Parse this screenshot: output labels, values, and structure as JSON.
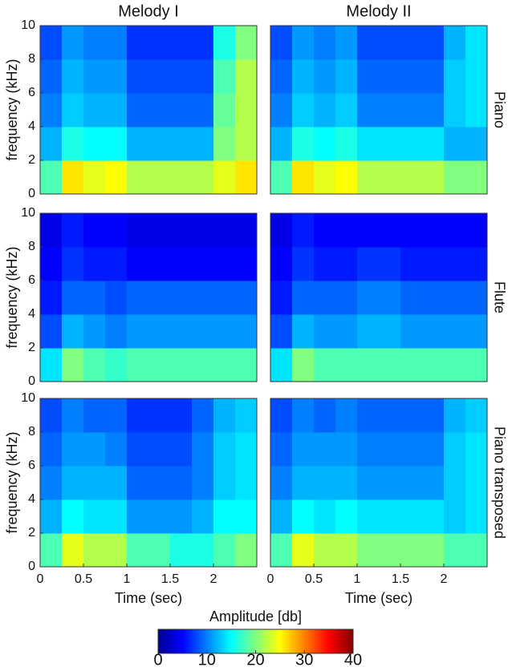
{
  "chart_data": [
    {
      "type": "heatmap",
      "title": "Melody I",
      "ylabel": "frequency (kHz)",
      "xlim": [
        0,
        2.5
      ],
      "ylim": [
        0,
        10
      ],
      "yticks": [
        0,
        2,
        4,
        6,
        8,
        10
      ],
      "z": [
        [
          18,
          26,
          24,
          25,
          22,
          22,
          22,
          22,
          24,
          26
        ],
        [
          12,
          16,
          15,
          15,
          12,
          12,
          12,
          12,
          20,
          22
        ],
        [
          10,
          13,
          12,
          12,
          9,
          9,
          9,
          9,
          19,
          22
        ],
        [
          9,
          12,
          11,
          11,
          8,
          8,
          8,
          8,
          18,
          22
        ],
        [
          8,
          11,
          10,
          10,
          7,
          7,
          7,
          7,
          16,
          20
        ]
      ]
    },
    {
      "type": "heatmap",
      "title": "Melody II",
      "xlim": [
        0,
        2.5
      ],
      "ylim": [
        0,
        10
      ],
      "z": [
        [
          18,
          26,
          24,
          25,
          22,
          22,
          22,
          22,
          20,
          20
        ],
        [
          12,
          16,
          15,
          16,
          14,
          14,
          14,
          14,
          12,
          12
        ],
        [
          10,
          13,
          12,
          13,
          10,
          10,
          10,
          10,
          13,
          14
        ],
        [
          9,
          12,
          11,
          12,
          9,
          9,
          9,
          9,
          13,
          14
        ],
        [
          8,
          11,
          10,
          11,
          8,
          8,
          8,
          8,
          12,
          14
        ]
      ]
    },
    {
      "type": "heatmap",
      "ylabel": "frequency (kHz)",
      "xlim": [
        0,
        2.5
      ],
      "ylim": [
        0,
        10
      ],
      "yticks": [
        0,
        2,
        4,
        6,
        8,
        10
      ],
      "z": [
        [
          14,
          20,
          18,
          17,
          18,
          18,
          18,
          18,
          18,
          18
        ],
        [
          8,
          12,
          11,
          10,
          11,
          11,
          11,
          11,
          11,
          11
        ],
        [
          6,
          9,
          9,
          8,
          9,
          9,
          9,
          9,
          9,
          9
        ],
        [
          5,
          7,
          6,
          6,
          5,
          5,
          5,
          5,
          5,
          5
        ],
        [
          4,
          6,
          5,
          5,
          4,
          4,
          4,
          4,
          4,
          4
        ]
      ]
    },
    {
      "type": "heatmap",
      "xlim": [
        0,
        2.5
      ],
      "ylim": [
        0,
        10
      ],
      "z": [
        [
          14,
          20,
          18,
          18,
          18,
          18,
          18,
          18,
          18,
          18
        ],
        [
          8,
          12,
          11,
          11,
          12,
          12,
          11,
          11,
          11,
          11
        ],
        [
          6,
          9,
          9,
          9,
          10,
          10,
          9,
          9,
          9,
          9
        ],
        [
          5,
          7,
          6,
          6,
          7,
          7,
          6,
          6,
          6,
          6
        ],
        [
          4,
          6,
          5,
          5,
          5,
          5,
          5,
          5,
          5,
          5
        ]
      ]
    },
    {
      "type": "heatmap",
      "ylabel": "frequency (kHz)",
      "xlabel": "Time (sec)",
      "xlim": [
        0,
        2.5
      ],
      "ylim": [
        0,
        10
      ],
      "yticks": [
        0,
        2,
        4,
        6,
        8,
        10
      ],
      "xticks": [
        0,
        0.5,
        1,
        1.5,
        2
      ],
      "z": [
        [
          18,
          24,
          22,
          22,
          18,
          18,
          16,
          16,
          18,
          20
        ],
        [
          12,
          15,
          14,
          14,
          11,
          11,
          11,
          12,
          15,
          15
        ],
        [
          10,
          12,
          12,
          12,
          9,
          9,
          9,
          10,
          13,
          14
        ],
        [
          9,
          11,
          11,
          10,
          8,
          8,
          8,
          10,
          13,
          14
        ],
        [
          8,
          10,
          9,
          9,
          7,
          7,
          7,
          9,
          12,
          13
        ]
      ]
    },
    {
      "type": "heatmap",
      "xlabel": "Time (sec)",
      "xlim": [
        0,
        2.5
      ],
      "ylim": [
        0,
        10
      ],
      "xticks": [
        0,
        0.5,
        1,
        1.5,
        2
      ],
      "z": [
        [
          18,
          24,
          22,
          22,
          20,
          20,
          20,
          20,
          18,
          18
        ],
        [
          12,
          15,
          14,
          15,
          14,
          14,
          14,
          14,
          13,
          14
        ],
        [
          10,
          12,
          12,
          12,
          11,
          11,
          11,
          11,
          13,
          14
        ],
        [
          9,
          11,
          11,
          11,
          10,
          10,
          10,
          10,
          13,
          14
        ],
        [
          8,
          10,
          9,
          10,
          9,
          9,
          9,
          9,
          12,
          13
        ]
      ]
    }
  ],
  "row_labels": [
    "Piano",
    "Flute",
    "Piano transposed"
  ],
  "colorbar": {
    "label": "Amplitude [db]",
    "clim": [
      0,
      40
    ],
    "ticks": [
      0,
      10,
      20,
      30,
      40
    ],
    "colormap": "jet"
  }
}
